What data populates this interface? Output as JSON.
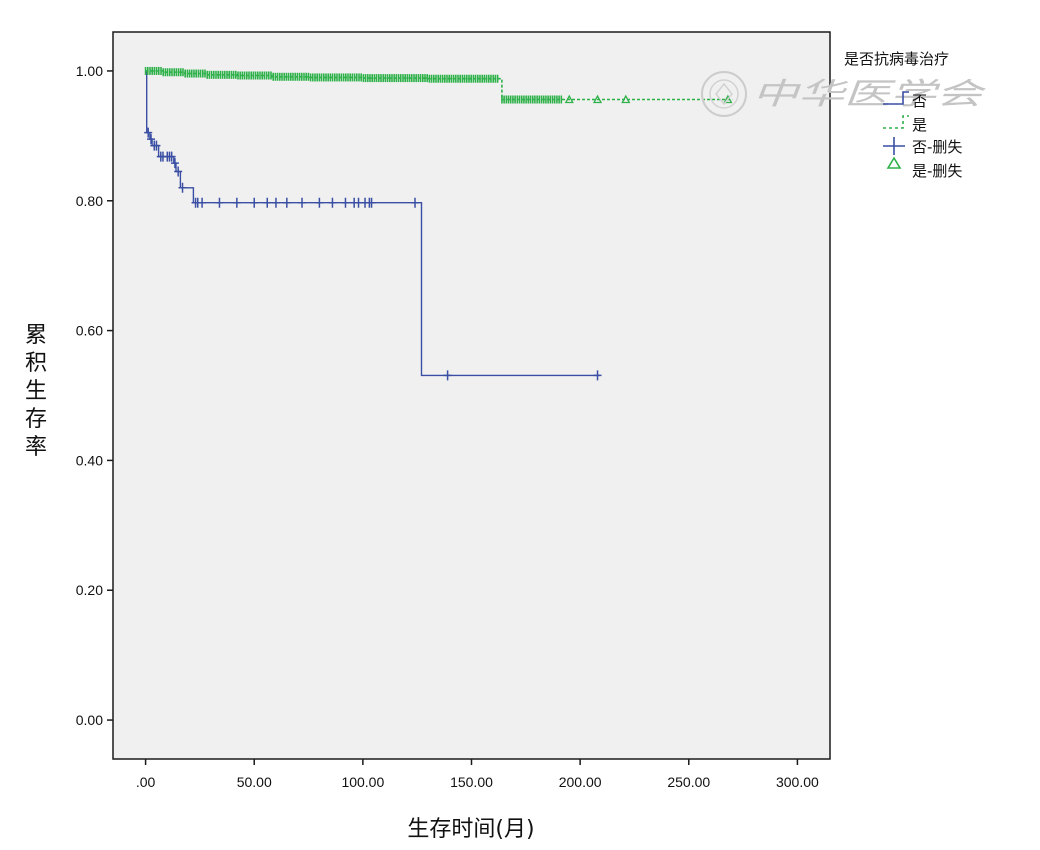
{
  "chart_data": {
    "type": "line",
    "subtype": "kaplan-meier-step",
    "title": "",
    "xlabel": "生存时间(月)",
    "ylabel": "累积生存率",
    "xlim": [
      -15,
      315
    ],
    "ylim": [
      -0.06,
      1.06
    ],
    "x_ticks": [
      0,
      50,
      100,
      150,
      200,
      250,
      300
    ],
    "x_tick_labels": [
      ".00",
      "50.00",
      "100.00",
      "150.00",
      "200.00",
      "250.00",
      "300.00"
    ],
    "y_ticks": [
      0,
      0.2,
      0.4,
      0.6,
      0.8,
      1.0
    ],
    "y_tick_labels": [
      "0.00",
      "0.20",
      "0.40",
      "0.60",
      "0.80",
      "1.00"
    ],
    "grid": false,
    "legend": {
      "title": "是否抗病毒治疗",
      "placement": "top-right",
      "entries": [
        "否",
        "是",
        "否-删失",
        "是-删失"
      ]
    },
    "series": [
      {
        "name": "否",
        "color": "#3a4fa3",
        "dashed": false,
        "censor_marker": "plus",
        "steps": [
          [
            0,
            1.0
          ],
          [
            0.5,
            0.905
          ],
          [
            2,
            0.895
          ],
          [
            3,
            0.885
          ],
          [
            6,
            0.868
          ],
          [
            13,
            0.858
          ],
          [
            14,
            0.845
          ],
          [
            16,
            0.82
          ],
          [
            22,
            0.797
          ],
          [
            127,
            0.531
          ]
        ],
        "end_x": 209,
        "censored": [
          [
            1.2,
            0.905
          ],
          [
            2.5,
            0.895
          ],
          [
            4,
            0.885
          ],
          [
            5,
            0.885
          ],
          [
            7,
            0.868
          ],
          [
            8,
            0.868
          ],
          [
            10,
            0.868
          ],
          [
            11,
            0.868
          ],
          [
            12,
            0.868
          ],
          [
            13.5,
            0.858
          ],
          [
            15,
            0.845
          ],
          [
            17,
            0.82
          ],
          [
            23,
            0.797
          ],
          [
            24,
            0.797
          ],
          [
            26,
            0.797
          ],
          [
            34,
            0.797
          ],
          [
            42,
            0.797
          ],
          [
            50,
            0.797
          ],
          [
            56,
            0.797
          ],
          [
            60,
            0.797
          ],
          [
            65,
            0.797
          ],
          [
            72,
            0.797
          ],
          [
            80,
            0.797
          ],
          [
            86,
            0.797
          ],
          [
            92,
            0.797
          ],
          [
            96,
            0.797
          ],
          [
            98,
            0.797
          ],
          [
            101,
            0.797
          ],
          [
            103,
            0.797
          ],
          [
            104,
            0.797
          ],
          [
            124,
            0.797
          ],
          [
            139,
            0.531
          ],
          [
            208,
            0.531
          ]
        ]
      },
      {
        "name": "是",
        "color": "#2fb14a",
        "dashed": true,
        "censor_marker": "triangle",
        "steps": [
          [
            0,
            1.0
          ],
          [
            8,
            0.998
          ],
          [
            18,
            0.996
          ],
          [
            28,
            0.994
          ],
          [
            42,
            0.993
          ],
          [
            58,
            0.991
          ],
          [
            75,
            0.99
          ],
          [
            100,
            0.989
          ],
          [
            130,
            0.988
          ],
          [
            164,
            0.956
          ]
        ],
        "end_x": 270,
        "censored_range": [
          [
            0,
            163,
            0.994
          ],
          [
            164,
            192,
            0.956
          ]
        ],
        "censored": [
          [
            195,
            0.956
          ],
          [
            208,
            0.956
          ],
          [
            221,
            0.956
          ],
          [
            268,
            0.956
          ]
        ]
      }
    ]
  },
  "watermark": {
    "text": "中华医学会"
  }
}
